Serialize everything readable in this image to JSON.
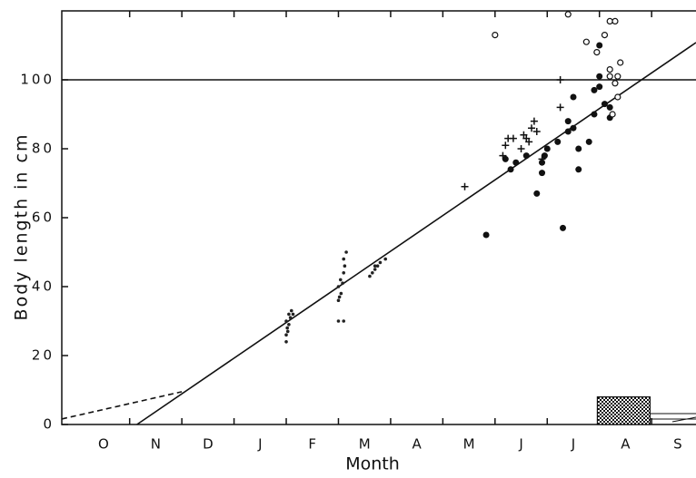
{
  "chart_data": {
    "type": "scatter",
    "xlabel": "Month",
    "ylabel": "Body length in cm",
    "categories": [
      "O",
      "N",
      "D",
      "J",
      "F",
      "M",
      "A",
      "M",
      "J",
      "J",
      "A",
      "S"
    ],
    "xlim": [
      -0.3,
      11.85
    ],
    "xticks": [
      1,
      2,
      3,
      4,
      5,
      6,
      7,
      8,
      9,
      10,
      11
    ],
    "ylim": [
      0,
      120
    ],
    "yticks": [
      0,
      20,
      40,
      60,
      80,
      100
    ],
    "series": [
      {
        "marker": "small-dot",
        "color": "#222",
        "x": [
          4.0,
          4.0,
          4.02,
          4.05,
          4.0,
          4.08,
          4.05,
          4.1,
          4.13,
          4.03,
          5.0,
          5.1,
          5.0,
          5.02,
          5.05,
          5.0,
          5.08,
          5.04,
          5.1,
          5.12,
          5.1,
          5.15,
          5.6,
          5.65,
          5.7,
          5.75,
          5.8,
          5.9,
          5.7
        ],
        "y": [
          24,
          26,
          28,
          29,
          30,
          31,
          32,
          33,
          32,
          27,
          30,
          30,
          36,
          37,
          38,
          40,
          41,
          42,
          44,
          46,
          48,
          50,
          43,
          44,
          45,
          46,
          47,
          48,
          46
        ]
      },
      {
        "marker": "dot",
        "color": "#111",
        "x": [
          8.2,
          8.3,
          8.4,
          8.6,
          8.8,
          8.9,
          8.9,
          7.83,
          9.3,
          9.0,
          9.4,
          9.4,
          9.5,
          9.5,
          9.6,
          9.6,
          9.8,
          9.9,
          9.9,
          10.0,
          10.0,
          10.0,
          10.1,
          10.2,
          10.2,
          9.2,
          8.95
        ],
        "y": [
          77,
          74,
          76,
          78,
          67,
          73,
          76,
          55,
          57,
          80,
          85,
          88,
          86,
          95,
          74,
          80,
          82,
          90,
          97,
          98,
          101,
          110,
          93,
          92,
          89,
          82,
          78
        ]
      },
      {
        "marker": "circle",
        "color": "#111",
        "x": [
          8.0,
          9.4,
          9.75,
          9.95,
          10.2,
          10.3,
          10.35,
          10.4,
          10.1,
          10.2,
          10.3,
          10.35,
          10.2,
          10.25
        ],
        "y": [
          113,
          119,
          111,
          108,
          103,
          99,
          95,
          105,
          113,
          117,
          117,
          101,
          101,
          90
        ]
      },
      {
        "marker": "plus",
        "color": "#111",
        "x": [
          7.42,
          8.15,
          8.2,
          8.25,
          8.35,
          8.5,
          8.55,
          8.6,
          8.7,
          8.75,
          8.8,
          8.9,
          8.65,
          9.25,
          9.25
        ],
        "y": [
          69,
          78,
          81,
          83,
          83,
          80,
          84,
          83,
          86,
          88,
          85,
          77,
          82,
          92,
          100
        ]
      }
    ],
    "lines": [
      {
        "style": "solid",
        "x": [
          1.14,
          11.85
        ],
        "y": [
          0,
          110.8
        ]
      },
      {
        "style": "dashed",
        "x": [
          -0.3,
          2.0
        ],
        "y": [
          1.6,
          9.5
        ]
      },
      {
        "style": "solid",
        "x": [
          -0.3,
          11.85
        ],
        "y": [
          100,
          100
        ]
      }
    ],
    "box": {
      "x": [
        9.96,
        10.97
      ],
      "y": [
        0,
        8
      ]
    }
  }
}
